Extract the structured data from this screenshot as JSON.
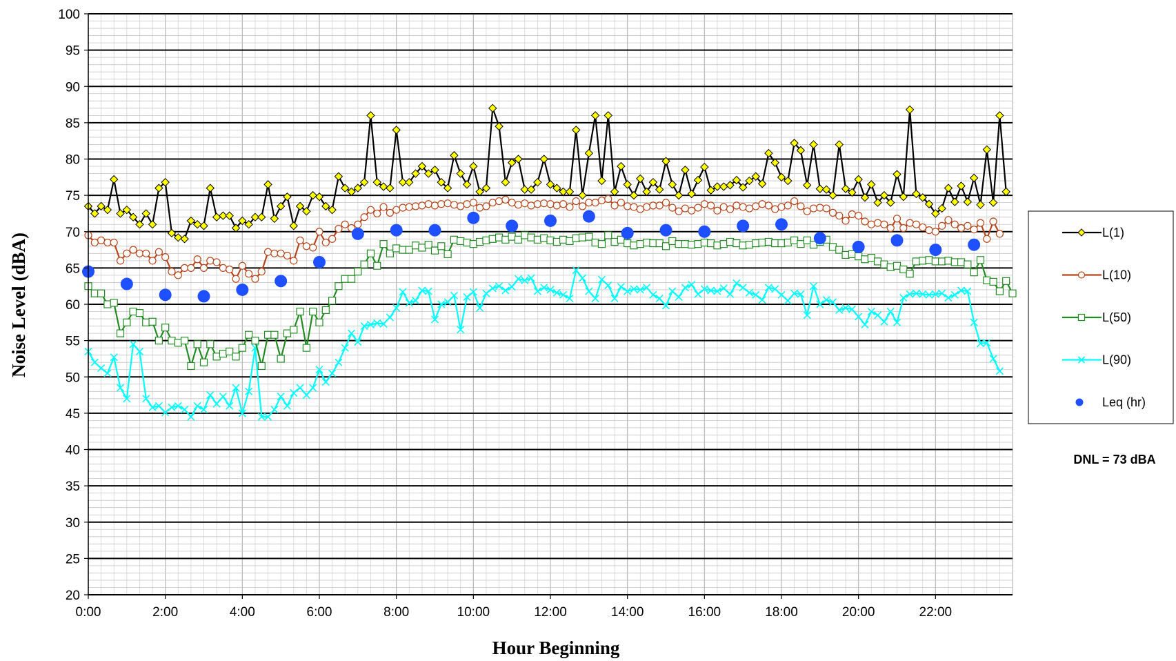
{
  "chart_data": {
    "type": "line",
    "title": "",
    "xlabel": "Hour Beginning",
    "ylabel": "Noise Level (dBA)",
    "ylim": [
      20,
      100
    ],
    "y_ticks": [
      20,
      25,
      30,
      35,
      40,
      45,
      50,
      55,
      60,
      65,
      70,
      75,
      80,
      85,
      90,
      95,
      100
    ],
    "y_tick_labels": [
      "20",
      "25",
      "30",
      "35",
      "40",
      "45",
      "50",
      "55",
      "60",
      "65",
      "70",
      "75",
      "80",
      "85",
      "90",
      "95",
      "100"
    ],
    "xlim": [
      0,
      24
    ],
    "x_ticks": [
      0,
      2,
      4,
      6,
      8,
      10,
      12,
      14,
      16,
      18,
      20,
      22
    ],
    "x_tick_labels": [
      "0:00",
      "2:00",
      "4:00",
      "6:00",
      "8:00",
      "10:00",
      "12:00",
      "14:00",
      "16:00",
      "18:00",
      "20:00",
      "22:00"
    ],
    "grid": "on",
    "legend_position": "right",
    "annotation": "DNL = 73 dBA",
    "x_step_hours": 0.1666667,
    "series": [
      {
        "name": "L(1)",
        "color": "#000000",
        "marker": "diamond",
        "marker_fill": "#ffff00",
        "values": [
          73.5,
          72.5,
          73.5,
          73,
          77.2,
          72.5,
          73,
          72,
          71,
          72.5,
          71,
          76,
          76.8,
          69.8,
          69.2,
          69,
          71.5,
          71,
          70.8,
          76,
          72,
          72.2,
          72.2,
          70.5,
          71.5,
          71,
          72,
          72,
          76.5,
          71.8,
          73.5,
          74.8,
          70.8,
          73.5,
          72.8,
          75,
          74.8,
          73.5,
          73,
          77.6,
          76,
          75.5,
          76,
          76.8,
          86,
          76.8,
          76.2,
          76,
          84,
          76.8,
          76.8,
          78,
          79,
          78,
          78.5,
          76.8,
          76,
          80.5,
          78,
          76.5,
          79,
          75.5,
          76,
          87,
          84.5,
          76.8,
          79.5,
          80,
          75.8,
          75.8,
          76.8,
          80,
          76.5,
          76,
          75.5,
          75.5,
          84,
          75,
          80.8,
          86,
          77,
          86,
          75.5,
          79,
          76.5,
          75,
          77.3,
          75.5,
          76.8,
          75.8,
          79.7,
          76.5,
          75,
          78.5,
          75.2,
          77.1,
          78.9,
          75.7,
          76.2,
          76.2,
          76.4,
          77.1,
          76.1,
          77,
          77.6,
          76.6,
          80.8,
          79.5,
          77.5,
          77,
          82.2,
          81.2,
          76.4,
          82,
          75.9,
          75.8,
          75,
          82,
          75.9,
          75.4,
          77.2,
          74.7,
          76.5,
          74,
          75,
          74,
          77.9,
          74.8,
          86.8,
          75.2,
          74.7,
          73.8,
          72.5,
          73.2,
          76,
          74.1,
          76.3,
          74.1,
          77.4,
          73.7,
          81.3,
          74,
          86,
          75.5
        ]
      },
      {
        "name": "L(10)",
        "color": "#b5451b",
        "marker": "circle",
        "marker_fill": "#ffffff",
        "values": [
          69.5,
          68.5,
          68.8,
          68.5,
          68.5,
          66,
          67,
          67.5,
          67,
          67,
          66,
          67.2,
          66.5,
          64.5,
          64,
          65,
          65,
          66.2,
          65,
          66,
          65.8,
          65,
          64.8,
          63.5,
          65.3,
          64.2,
          63.5,
          64.5,
          67.2,
          67,
          67,
          66.7,
          66,
          68.8,
          68,
          67.8,
          70,
          68.5,
          69,
          70.4,
          71,
          70.5,
          71,
          72,
          73,
          72.5,
          73.4,
          72.6,
          73,
          73.3,
          73.4,
          73.5,
          73.6,
          73.8,
          73.6,
          73.8,
          73.9,
          73.7,
          73.5,
          73.8,
          74,
          73.3,
          73.5,
          74,
          74.2,
          74.4,
          74,
          73.7,
          73.9,
          73.6,
          73.8,
          73.9,
          73.8,
          73.6,
          73.8,
          73.4,
          74.2,
          73.5,
          74,
          74,
          74.3,
          74.5,
          73.6,
          74,
          73.5,
          73.4,
          73.1,
          73.4,
          73.6,
          73.6,
          74,
          73.3,
          72.8,
          73.2,
          72.9,
          73.3,
          73.8,
          73.6,
          72.9,
          73.4,
          73.1,
          73.6,
          73.4,
          73.2,
          73.5,
          73.8,
          73.6,
          73.1,
          73.4,
          73.6,
          74.2,
          73.5,
          72.8,
          73.2,
          73.3,
          73.2,
          72.6,
          72.2,
          71.5,
          72.4,
          72.2,
          71.4,
          71,
          71.2,
          71,
          70.5,
          71.8,
          70.5,
          71.2,
          71,
          70.6,
          70.2,
          70,
          70.8,
          71.6,
          71,
          70.5,
          70.8,
          70.3,
          71.2,
          69,
          71.4,
          69.7
        ]
      },
      {
        "name": "L(50)",
        "color": "#228b22",
        "marker": "square",
        "marker_fill": "#ffffff",
        "values": [
          62.5,
          61.5,
          61.5,
          60,
          60.2,
          56,
          57.5,
          59,
          58.8,
          57.5,
          57.6,
          55,
          56.8,
          55,
          54.7,
          55,
          51.5,
          54.5,
          52,
          54.5,
          52.8,
          53.2,
          53.5,
          52.8,
          54,
          55.8,
          55,
          51.5,
          55.8,
          55.8,
          52.5,
          56,
          56.5,
          59,
          54,
          59,
          57.5,
          59.2,
          60.5,
          62.5,
          63.5,
          63.5,
          64.5,
          65.5,
          67,
          65.3,
          68.3,
          67,
          67.7,
          67.5,
          67.5,
          68.1,
          67.8,
          68.2,
          67.4,
          68,
          66.9,
          68.9,
          68.7,
          68.5,
          68.3,
          68.6,
          68.8,
          69,
          69.2,
          68.9,
          69.3,
          68.9,
          69.5,
          69.2,
          68.9,
          69.1,
          68.8,
          68.6,
          68.9,
          68.7,
          69.1,
          69.2,
          69.3,
          68.5,
          68.3,
          69.5,
          68.6,
          68.9,
          68.4,
          68.1,
          68.3,
          68.5,
          68.4,
          68.4,
          68,
          68.7,
          68.3,
          68.3,
          68.2,
          68.3,
          68.5,
          68.4,
          68.1,
          68.3,
          68.6,
          68.4,
          68.1,
          68.2,
          68.4,
          68.5,
          68.6,
          68.4,
          68.4,
          68.5,
          68.8,
          68.3,
          68.8,
          68.2,
          68.6,
          68.9,
          67.9,
          67.5,
          66.8,
          66.9,
          66.6,
          66.2,
          66.4,
          65.9,
          65.5,
          65.1,
          65.3,
          64.8,
          64.2,
          65.9,
          66,
          66.1,
          65.9,
          65.9,
          66,
          65.8,
          65.8,
          65.5,
          64.4,
          66.1,
          63.3,
          63.1,
          61.8,
          63.2,
          61.5
        ]
      },
      {
        "name": "L(90)",
        "color": "#00ffff",
        "marker": "x",
        "marker_fill": "none",
        "values": [
          53.5,
          52,
          51.2,
          50.5,
          52.7,
          48.5,
          47,
          54.5,
          53.5,
          47,
          45.8,
          46,
          45.1,
          45.8,
          46,
          45.5,
          44.5,
          46,
          45.5,
          47.5,
          46.3,
          47.3,
          46,
          48.5,
          45,
          48,
          54,
          44.5,
          44.5,
          45.5,
          47.3,
          46,
          47.8,
          48.5,
          47.5,
          48.5,
          51,
          49.3,
          50.5,
          52,
          54,
          56,
          54.8,
          57,
          57.2,
          57.4,
          57.3,
          58.2,
          59.5,
          61.7,
          60.2,
          60.5,
          61.9,
          61.8,
          57.9,
          60,
          60.3,
          61.2,
          56.5,
          61,
          61.7,
          59.5,
          61.5,
          62.2,
          62.5,
          61.9,
          62.4,
          63.5,
          63.3,
          63.6,
          61.8,
          62.3,
          62,
          61.6,
          61.3,
          60.8,
          64.7,
          63.6,
          61.8,
          60.8,
          63.4,
          62.6,
          60.8,
          62.4,
          61.8,
          62.1,
          62,
          62.3,
          61.3,
          60.8,
          59.8,
          61.8,
          61,
          62.3,
          62.7,
          61.4,
          62.1,
          61.9,
          61.8,
          62.2,
          61.4,
          62.9,
          62.3,
          61.6,
          61.3,
          60.6,
          62.3,
          62.1,
          61.3,
          60.5,
          61.5,
          61.4,
          58.5,
          62.5,
          60,
          60.6,
          60.3,
          59.2,
          59.5,
          59.3,
          58.3,
          57.2,
          59,
          58.5,
          57.6,
          59,
          57.5,
          60.9,
          61.4,
          61.5,
          61.4,
          61.3,
          61.4,
          61.5,
          60.9,
          61.3,
          61.9,
          61.8,
          57.5,
          54.6,
          54.7,
          52.5,
          50.8
        ]
      },
      {
        "name": "Leq (hr)",
        "color": "#1e50ff",
        "marker": "dot",
        "marker_fill": "#1e50ff",
        "style": "markers-only",
        "x": [
          0,
          1,
          2,
          3,
          4,
          5,
          6,
          7,
          8,
          9,
          10,
          11,
          12,
          13,
          14,
          15,
          16,
          17,
          18,
          19,
          20,
          21,
          22,
          23
        ],
        "values": [
          64.5,
          62.8,
          61.3,
          61.1,
          62,
          63.2,
          65.8,
          69.7,
          70.2,
          70.2,
          71.9,
          70.8,
          71.5,
          72.1,
          69.8,
          70.2,
          70,
          70.8,
          71,
          69.1,
          67.9,
          68.8,
          67.5,
          68.2
        ]
      }
    ]
  }
}
